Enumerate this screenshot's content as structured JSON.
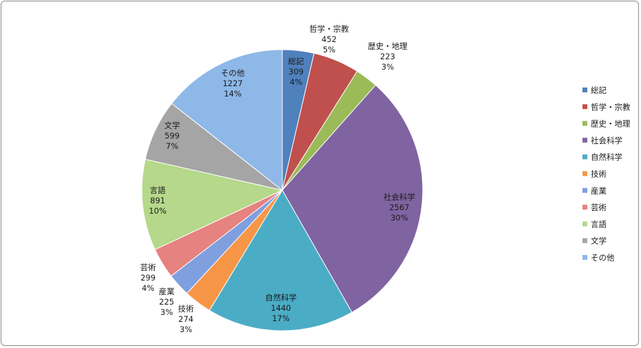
{
  "chart_data": {
    "type": "pie",
    "title": "",
    "start_angle": "top",
    "direction": "clockwise",
    "legend_position": "right",
    "categories": [
      "総記",
      "哲学・宗教",
      "歴史・地理",
      "社会科学",
      "自然科学",
      "技術",
      "産業",
      "芸術",
      "言語",
      "文学",
      "その他"
    ],
    "values": [
      309,
      452,
      223,
      2567,
      1440,
      274,
      225,
      299,
      891,
      599,
      1227
    ],
    "percent_labels": [
      "4%",
      "5%",
      "3%",
      "30%",
      "17%",
      "3%",
      "3%",
      "4%",
      "10%",
      "7%",
      "14%"
    ],
    "colors": [
      "#4F81BD",
      "#C0504D",
      "#9BBB59",
      "#8064A2",
      "#4BACC6",
      "#F79646",
      "#7F9FDF",
      "#E6827F",
      "#B5D88A",
      "#A5A5A5",
      "#8DB8E8"
    ]
  }
}
